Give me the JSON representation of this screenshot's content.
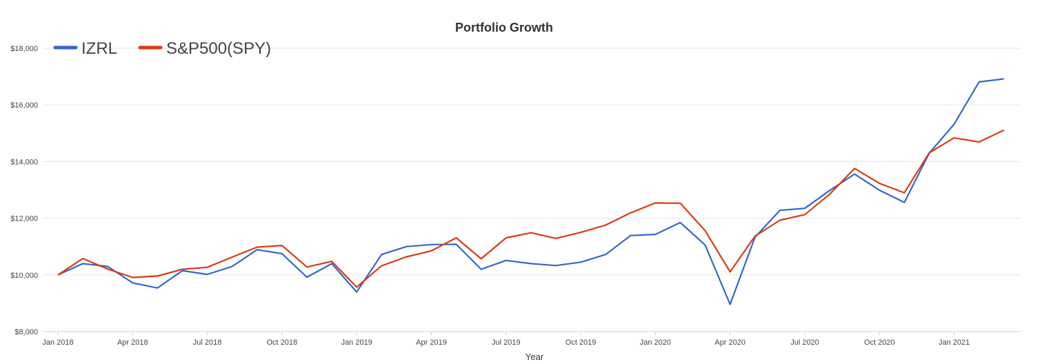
{
  "chart_data": {
    "type": "line",
    "title": "Portfolio Growth",
    "xlabel": "Year",
    "ylabel": "",
    "ylim": [
      8000,
      18000
    ],
    "yticks": [
      8000,
      10000,
      12000,
      14000,
      16000,
      18000
    ],
    "ytick_labels": [
      "$8,000",
      "$10,000",
      "$12,000",
      "$14,000",
      "$16,000",
      "$18,000"
    ],
    "x_ticks": [
      "Jan 2018",
      "Apr 2018",
      "Jul 2018",
      "Oct 2018",
      "Jan 2019",
      "Apr 2019",
      "Jul 2019",
      "Oct 2019",
      "Jan 2020",
      "Apr 2020",
      "Jul 2020",
      "Oct 2020",
      "Jan 2021"
    ],
    "x": [
      "2018-01",
      "2018-02",
      "2018-03",
      "2018-04",
      "2018-05",
      "2018-06",
      "2018-07",
      "2018-08",
      "2018-09",
      "2018-10",
      "2018-11",
      "2018-12",
      "2019-01",
      "2019-02",
      "2019-03",
      "2019-04",
      "2019-05",
      "2019-06",
      "2019-07",
      "2019-08",
      "2019-09",
      "2019-10",
      "2019-11",
      "2019-12",
      "2020-01",
      "2020-02",
      "2020-03",
      "2020-04",
      "2020-05",
      "2020-06",
      "2020-07",
      "2020-08",
      "2020-09",
      "2020-10",
      "2020-11",
      "2020-12",
      "2021-01",
      "2021-02",
      "2021-03"
    ],
    "legend_position": "top-left",
    "grid": true,
    "series": [
      {
        "name": "IZRL",
        "color": "#3366cc",
        "values": [
          10000,
          10400,
          10300,
          9720,
          9540,
          10150,
          10020,
          10300,
          10890,
          10750,
          9920,
          10400,
          9400,
          10720,
          11000,
          11070,
          11080,
          10200,
          10510,
          10400,
          10330,
          10450,
          10720,
          11390,
          11430,
          11850,
          11050,
          8960,
          11330,
          12280,
          12350,
          12980,
          13560,
          12990,
          12560,
          14300,
          15320,
          16810,
          16920
        ]
      },
      {
        "name": "S&P500(SPY)",
        "color": "#dc3912",
        "values": [
          10000,
          10580,
          10210,
          9910,
          9960,
          10200,
          10270,
          10630,
          10980,
          11040,
          10280,
          10480,
          9570,
          10320,
          10640,
          10850,
          11310,
          10570,
          11310,
          11490,
          11290,
          11500,
          11760,
          12190,
          12540,
          12530,
          11560,
          10110,
          11370,
          11930,
          12130,
          12850,
          13760,
          13230,
          12900,
          14310,
          14840,
          14690,
          15110
        ]
      }
    ]
  }
}
